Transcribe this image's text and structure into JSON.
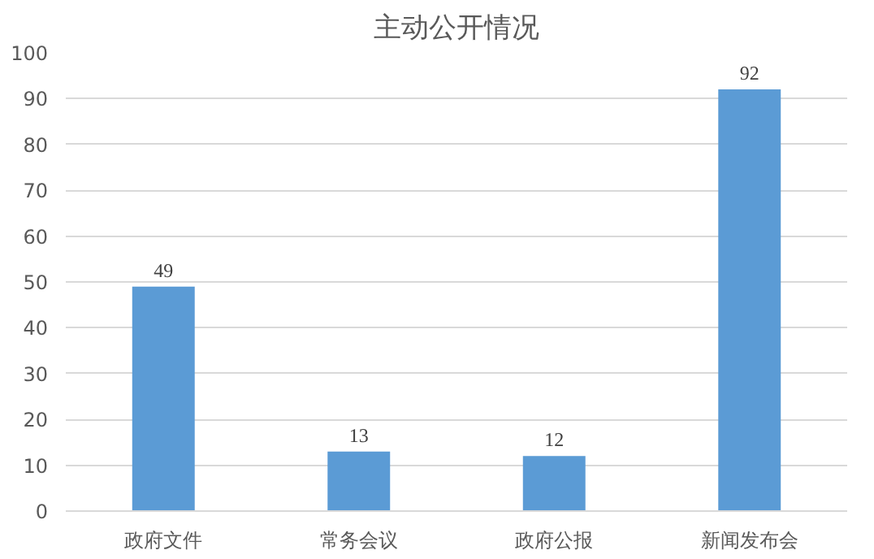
{
  "chart_data": {
    "type": "bar",
    "title": "主动公开情况",
    "categories": [
      "政府文件",
      "常务会议",
      "政府公报",
      "新闻发布会"
    ],
    "values": [
      49,
      13,
      12,
      92
    ],
    "color": "#5b9bd5",
    "ylim": [
      0,
      100
    ],
    "yticks": [
      0,
      10,
      20,
      30,
      40,
      50,
      60,
      70,
      80,
      90,
      100
    ],
    "grid": "y",
    "data_labels": true
  }
}
